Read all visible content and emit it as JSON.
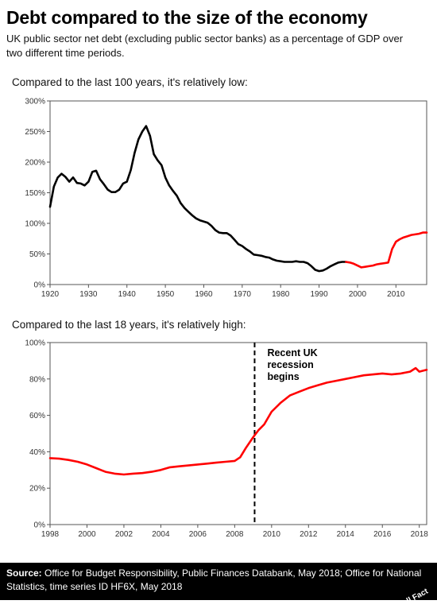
{
  "title": "Debt compared to the size of the economy",
  "subtitle": "UK public sector net debt (excluding public sector banks) as a percentage of GDP over two different time periods.",
  "footer": {
    "source_label": "Source:",
    "source_text": "Office for Budget Responsibility, Public Finances Databank, May 2018; Office for National Statistics, time series ID HF6X, May 2018",
    "logo": "Full Fact"
  },
  "colors": {
    "historic": "#000000",
    "recent": "#ff0000",
    "axis": "#555555"
  },
  "chart_data": [
    {
      "type": "line",
      "panel_title": "Compared to the last 100 years, it's relatively low:",
      "xlim": [
        1920,
        2018
      ],
      "ylim": [
        0,
        300
      ],
      "x_ticks": [
        1920,
        1930,
        1940,
        1950,
        1960,
        1970,
        1980,
        1990,
        2000,
        2010
      ],
      "y_ticks": [
        0,
        50,
        100,
        150,
        200,
        250,
        300
      ],
      "y_tick_labels": [
        "0%",
        "50%",
        "100%",
        "150%",
        "200%",
        "250%",
        "300%"
      ],
      "series": [
        {
          "color": "#000000",
          "x": [
            1920,
            1921,
            1922,
            1923,
            1924,
            1925,
            1926,
            1927,
            1928,
            1929,
            1930,
            1931,
            1932,
            1933,
            1934,
            1935,
            1936,
            1937,
            1938,
            1939,
            1940,
            1941,
            1942,
            1943,
            1944,
            1945,
            1946,
            1947,
            1948,
            1949,
            1950,
            1951,
            1952,
            1953,
            1954,
            1955,
            1956,
            1957,
            1958,
            1959,
            1960,
            1961,
            1962,
            1963,
            1964,
            1965,
            1966,
            1967,
            1968,
            1969,
            1970,
            1971,
            1972,
            1973,
            1974,
            1975,
            1976,
            1977,
            1978,
            1979,
            1980,
            1981,
            1982,
            1983,
            1984,
            1985,
            1986,
            1987,
            1988,
            1989,
            1990,
            1991,
            1992,
            1993,
            1994,
            1995,
            1996,
            1997
          ],
          "values": [
            127,
            160,
            175,
            181,
            176,
            168,
            175,
            166,
            165,
            162,
            168,
            184,
            186,
            172,
            164,
            155,
            151,
            151,
            155,
            165,
            168,
            187,
            215,
            237,
            250,
            259,
            243,
            213,
            203,
            195,
            175,
            162,
            153,
            145,
            133,
            125,
            119,
            113,
            108,
            105,
            103,
            101,
            96,
            89,
            85,
            84,
            84,
            80,
            73,
            66,
            63,
            58,
            54,
            49,
            48,
            47,
            45,
            44,
            41,
            39,
            38,
            37,
            37,
            37,
            38,
            37,
            37,
            35,
            30,
            24,
            22,
            23,
            26,
            30,
            33,
            36,
            37,
            37
          ]
        },
        {
          "color": "#ff0000",
          "x": [
            1997,
            1998,
            1999,
            2000,
            2001,
            2002,
            2003,
            2004,
            2005,
            2006,
            2007,
            2008,
            2009,
            2010,
            2011,
            2012,
            2013,
            2014,
            2015,
            2016,
            2017,
            2018
          ],
          "values": [
            37,
            36,
            34,
            31,
            28,
            29,
            30,
            31,
            33,
            34,
            35,
            36,
            58,
            70,
            74,
            77,
            79,
            81,
            82,
            83,
            85,
            85
          ]
        }
      ]
    },
    {
      "type": "line",
      "panel_title": "Compared to the last 18 years, it's relatively high:",
      "xlim": [
        1998,
        2018.4
      ],
      "ylim": [
        0,
        100
      ],
      "x_ticks": [
        1998,
        2000,
        2002,
        2004,
        2006,
        2008,
        2010,
        2012,
        2014,
        2016,
        2018
      ],
      "y_ticks": [
        0,
        20,
        40,
        60,
        80,
        100
      ],
      "y_tick_labels": [
        "0%",
        "20%",
        "40%",
        "60%",
        "80%",
        "100%"
      ],
      "annotation": {
        "x": 2009.08,
        "text": [
          "Recent UK",
          "recession",
          "begins"
        ]
      },
      "series": [
        {
          "color": "#ff0000",
          "x": [
            1998,
            1998.5,
            1999,
            1999.5,
            2000,
            2000.5,
            2001,
            2001.5,
            2002,
            2002.5,
            2003,
            2003.5,
            2004,
            2004.5,
            2005,
            2005.5,
            2006,
            2006.5,
            2007,
            2007.5,
            2008,
            2008.3,
            2008.6,
            2009,
            2009.3,
            2009.6,
            2010,
            2010.5,
            2011,
            2011.5,
            2012,
            2012.5,
            2013,
            2013.5,
            2014,
            2014.5,
            2015,
            2015.5,
            2016,
            2016.5,
            2017,
            2017.5,
            2017.8,
            2018,
            2018.4
          ],
          "values": [
            36.5,
            36.2,
            35.5,
            34.5,
            33,
            31,
            29,
            28,
            27.5,
            28,
            28.3,
            29,
            30,
            31.5,
            32,
            32.5,
            33,
            33.5,
            34,
            34.5,
            35,
            37,
            42,
            48,
            52,
            55,
            62,
            67,
            71,
            73,
            75,
            76.5,
            78,
            79,
            80,
            81,
            82,
            82.5,
            83,
            82.5,
            83,
            84,
            86,
            84,
            85
          ]
        }
      ]
    }
  ]
}
